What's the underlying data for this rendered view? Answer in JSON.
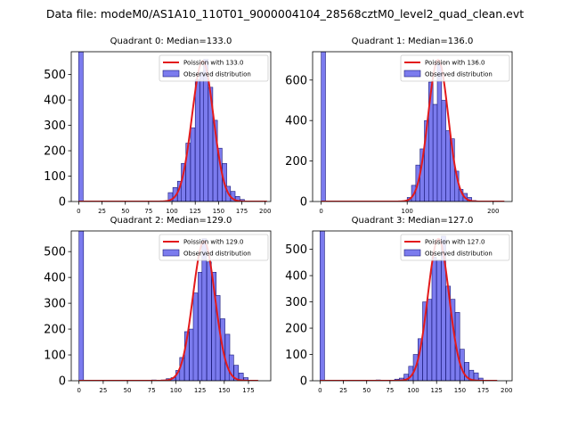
{
  "figure": {
    "title": "Data file: modeM0/AS1A10_110T01_9000004104_28568cztM0_level2_quad_clean.evt"
  },
  "colors": {
    "bar_fill": "#7b7bee",
    "bar_edge": "#1a1a7a",
    "curve": "#e31a1c"
  },
  "chart_data": [
    {
      "type": "bar",
      "title": "Quadrant 0: Median=133.0",
      "legend": [
        "Poission with 133.0",
        "Observed distribution"
      ],
      "legend_position": "top-right",
      "xlim": [
        -8,
        206
      ],
      "ylim": [
        0,
        590
      ],
      "xticks": [
        0,
        25,
        50,
        75,
        100,
        125,
        150,
        175,
        200
      ],
      "yticks": [
        0,
        100,
        200,
        300,
        400,
        500
      ],
      "bin_width": 4.8,
      "bin_starts": [
        0,
        72,
        96,
        101,
        106,
        110,
        115,
        120,
        125,
        130,
        134,
        139,
        144,
        149,
        154,
        158,
        163,
        168,
        173
      ],
      "values": [
        590,
        2,
        35,
        55,
        80,
        150,
        230,
        290,
        480,
        510,
        560,
        450,
        320,
        210,
        150,
        60,
        40,
        20,
        8
      ],
      "poisson_mean": 133,
      "poisson_peak": 553,
      "poisson_range": [
        0,
        202
      ]
    },
    {
      "type": "bar",
      "title": "Quadrant 1: Median=136.0",
      "legend": [
        "Poission with 136.0",
        "Observed distribution"
      ],
      "legend_position": "top-right",
      "xlim": [
        -10,
        222
      ],
      "ylim": [
        0,
        740
      ],
      "xticks": [
        0,
        100,
        200
      ],
      "yticks": [
        0,
        200,
        400,
        600
      ],
      "bin_width": 5,
      "bin_starts": [
        0,
        100,
        105,
        110,
        115,
        120,
        125,
        130,
        135,
        140,
        145,
        150,
        155,
        160,
        165,
        170,
        175
      ],
      "values": [
        740,
        20,
        80,
        180,
        260,
        400,
        590,
        480,
        680,
        500,
        350,
        310,
        150,
        60,
        40,
        20,
        5
      ],
      "poisson_mean": 136,
      "poisson_peak": 700,
      "poisson_range": [
        0,
        213
      ]
    },
    {
      "type": "bar",
      "title": "Quadrant 2: Median=129.0",
      "legend": [
        "Poission with 129.0",
        "Observed distribution"
      ],
      "legend_position": "top-right",
      "xlim": [
        -8,
        198
      ],
      "ylim": [
        0,
        580
      ],
      "xticks": [
        0,
        25,
        50,
        75,
        100,
        125,
        150,
        175
      ],
      "yticks": [
        0,
        100,
        200,
        300,
        400,
        500
      ],
      "bin_width": 4.7,
      "bin_starts": [
        0,
        75,
        85,
        90,
        95,
        100,
        104,
        109,
        114,
        118,
        123,
        127,
        132,
        137,
        141,
        146,
        151,
        155,
        160,
        165,
        170
      ],
      "values": [
        580,
        3,
        3,
        8,
        12,
        40,
        90,
        190,
        200,
        340,
        420,
        550,
        460,
        420,
        330,
        240,
        180,
        100,
        60,
        30,
        12
      ],
      "poisson_mean": 129,
      "poisson_peak": 540,
      "poisson_range": [
        0,
        185
      ]
    },
    {
      "type": "bar",
      "title": "Quadrant 3: Median=127.0",
      "legend": [
        "Poission with 127.0",
        "Observed distribution"
      ],
      "legend_position": "top-right",
      "xlim": [
        -8,
        206
      ],
      "ylim": [
        0,
        570
      ],
      "xticks": [
        0,
        25,
        50,
        75,
        100,
        125,
        150,
        175,
        200
      ],
      "yticks": [
        0,
        100,
        200,
        300,
        400,
        500
      ],
      "bin_width": 4.8,
      "bin_starts": [
        0,
        60,
        80,
        85,
        90,
        95,
        100,
        105,
        110,
        115,
        120,
        125,
        130,
        135,
        140,
        145,
        150,
        155,
        160,
        165,
        170
      ],
      "values": [
        570,
        3,
        6,
        10,
        25,
        55,
        100,
        160,
        300,
        310,
        470,
        460,
        550,
        360,
        310,
        260,
        120,
        70,
        40,
        30,
        10
      ],
      "poisson_mean": 127,
      "poisson_peak": 540,
      "poisson_range": [
        0,
        190
      ]
    }
  ]
}
